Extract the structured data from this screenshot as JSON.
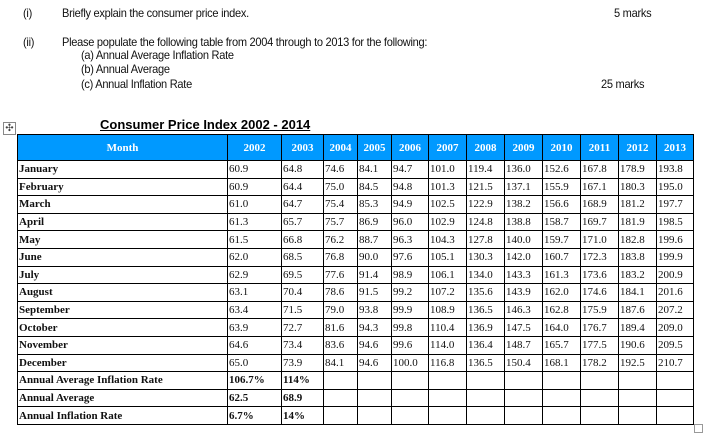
{
  "questions": [
    {
      "num": "(i)",
      "text": "Briefly explain the consumer price index.",
      "marks": "5 marks"
    },
    {
      "num": "(ii)",
      "text": "Please populate the following table from 2004 through to 2013 for the following:",
      "subitems": [
        "(a) Annual Average Inflation Rate",
        "(b) Annual Average",
        "(c) Annual Inflation Rate"
      ],
      "marks": "25 marks"
    }
  ],
  "table": {
    "title": "Consumer Price Index 2002 - 2014",
    "header_color": "#0099ff",
    "columns": [
      "Month",
      "2002",
      "2003",
      "2004",
      "2005",
      "2006",
      "2007",
      "2008",
      "2009",
      "2010",
      "2011",
      "2012",
      "2013"
    ],
    "rows": [
      [
        "January",
        "60.9",
        "64.8",
        "74.6",
        "84.1",
        "94.7",
        "101.0",
        "119.4",
        "136.0",
        "152.6",
        "167.8",
        "178.9",
        "193.8"
      ],
      [
        "February",
        "60.9",
        "64.4",
        "75.0",
        "84.5",
        "94.8",
        "101.3",
        "121.5",
        "137.1",
        "155.9",
        "167.1",
        "180.3",
        "195.0"
      ],
      [
        "March",
        "61.0",
        "64.7",
        "75.4",
        "85.3",
        "94.9",
        "102.5",
        "122.9",
        "138.2",
        "156.6",
        "168.9",
        "181.2",
        "197.7"
      ],
      [
        "April",
        "61.3",
        "65.7",
        "75.7",
        "86.9",
        "96.0",
        "102.9",
        "124.8",
        "138.8",
        "158.7",
        "169.7",
        "181.9",
        "198.5"
      ],
      [
        "May",
        "61.5",
        "66.8",
        "76.2",
        "88.7",
        "96.3",
        "104.3",
        "127.8",
        "140.0",
        "159.7",
        "171.0",
        "182.8",
        "199.6"
      ],
      [
        "June",
        "62.0",
        "68.5",
        "76.8",
        "90.0",
        "97.6",
        "105.1",
        "130.3",
        "142.0",
        "160.7",
        "172.3",
        "183.8",
        "199.9"
      ],
      [
        "July",
        "62.9",
        "69.5",
        "77.6",
        "91.4",
        "98.9",
        "106.1",
        "134.0",
        "143.3",
        "161.3",
        "173.6",
        "183.2",
        "200.9"
      ],
      [
        "August",
        "63.1",
        "70.4",
        "78.6",
        "91.5",
        "99.2",
        "107.2",
        "135.6",
        "143.9",
        "162.0",
        "174.6",
        "184.1",
        "201.6"
      ],
      [
        "September",
        "63.4",
        "71.5",
        "79.0",
        "93.8",
        "99.9",
        "108.9",
        "136.5",
        "146.3",
        "162.8",
        "175.9",
        "187.6",
        "207.2"
      ],
      [
        "October",
        "63.9",
        "72.7",
        "81.6",
        "94.3",
        "99.8",
        "110.4",
        "136.9",
        "147.5",
        "164.0",
        "176.7",
        "189.4",
        "209.0"
      ],
      [
        "November",
        "64.6",
        "73.4",
        "83.6",
        "94.6",
        "99.6",
        "114.0",
        "136.4",
        "148.7",
        "165.7",
        "177.5",
        "190.6",
        "209.5"
      ],
      [
        "December",
        "65.0",
        "73.9",
        "84.1",
        "94.6",
        "100.0",
        "116.8",
        "136.5",
        "150.4",
        "168.1",
        "178.2",
        "192.5",
        "210.7"
      ]
    ],
    "footer_rows": [
      [
        "Annual Average Inflation Rate",
        "106.7%",
        "114%",
        "",
        "",
        "",
        "",
        "",
        "",
        "",
        "",
        "",
        ""
      ],
      [
        "Annual Average",
        "62.5",
        "68.9",
        "",
        "",
        "",
        "",
        "",
        "",
        "",
        "",
        "",
        ""
      ],
      [
        "Annual Inflation Rate",
        "6.7%",
        "14%",
        "",
        "",
        "",
        "",
        "",
        "",
        "",
        "",
        "",
        ""
      ]
    ]
  }
}
